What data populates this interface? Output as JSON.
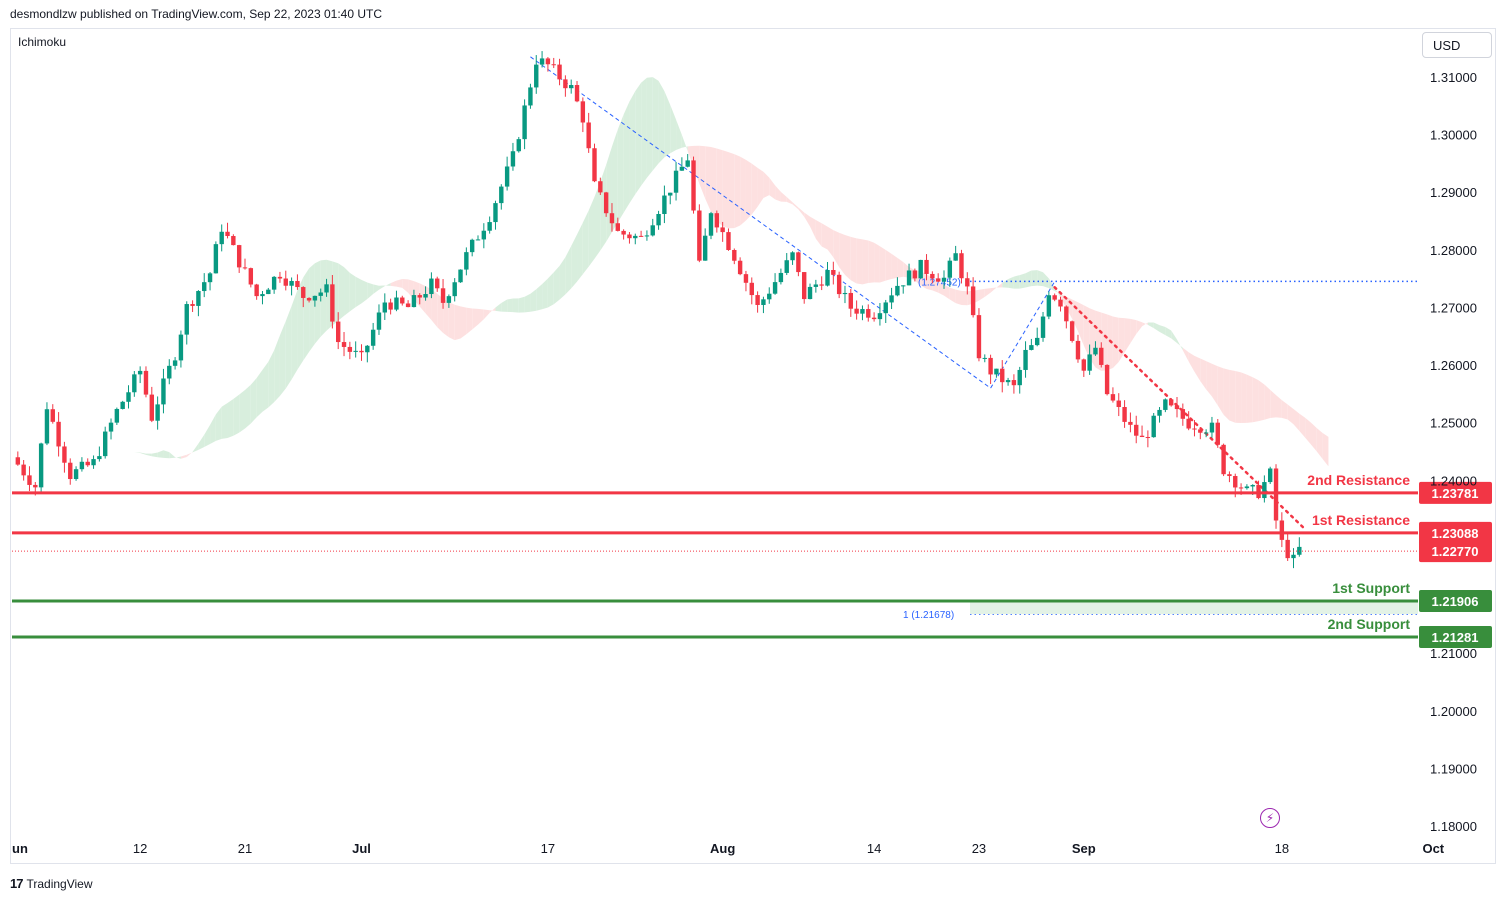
{
  "header": {
    "publisher": "desmondlzw published on TradingView.com, Sep 22, 2023 01:40 UTC"
  },
  "indicator": {
    "name": "Ichimoku"
  },
  "currency": "USD",
  "footer": {
    "brand": "TradingView",
    "logo_glyph": "17"
  },
  "colors": {
    "bull": "#089981",
    "bear": "#f23645",
    "resistance": "#f23645",
    "support": "#388e3c",
    "fib": "#2962ff",
    "cloud_bull": "#d8eedd",
    "cloud_bear": "#fde0e0"
  },
  "chart_data": {
    "type": "candlestick",
    "title": "",
    "ylim": [
      1.178,
      1.318
    ],
    "y_ticks": [
      "1.31000",
      "1.30000",
      "1.29000",
      "1.28000",
      "1.27000",
      "1.26000",
      "1.25000",
      "1.24000",
      "1.21000",
      "1.20000",
      "1.19000",
      "1.18000"
    ],
    "x_ticks": [
      {
        "label": "un",
        "day": 0
      },
      {
        "label": "12",
        "day": 11
      },
      {
        "label": "21",
        "day": 20
      },
      {
        "label": "Jul",
        "day": 30
      },
      {
        "label": "17",
        "day": 46
      },
      {
        "label": "Aug",
        "day": 61
      },
      {
        "label": "14",
        "day": 74
      },
      {
        "label": "23",
        "day": 83
      },
      {
        "label": "Sep",
        "day": 92
      },
      {
        "label": "18",
        "day": 109
      },
      {
        "label": "Oct",
        "day": 122
      }
    ],
    "close_path": [
      [
        0,
        1.244
      ],
      [
        2,
        1.239
      ],
      [
        3,
        1.253
      ],
      [
        5,
        1.241
      ],
      [
        7,
        1.243
      ],
      [
        9,
        1.252
      ],
      [
        11,
        1.259
      ],
      [
        12,
        1.251
      ],
      [
        14,
        1.262
      ],
      [
        15,
        1.27
      ],
      [
        17,
        1.276
      ],
      [
        18,
        1.284
      ],
      [
        20,
        1.276
      ],
      [
        21,
        1.272
      ],
      [
        23,
        1.276
      ],
      [
        25,
        1.272
      ],
      [
        27,
        1.273
      ],
      [
        28,
        1.264
      ],
      [
        30,
        1.261
      ],
      [
        32,
        1.271
      ],
      [
        34,
        1.27
      ],
      [
        36,
        1.274
      ],
      [
        37,
        1.271
      ],
      [
        39,
        1.279
      ],
      [
        41,
        1.286
      ],
      [
        43,
        1.296
      ],
      [
        45,
        1.313
      ],
      [
        46,
        1.312
      ],
      [
        48,
        1.308
      ],
      [
        49,
        1.303
      ],
      [
        50,
        1.291
      ],
      [
        52,
        1.283
      ],
      [
        54,
        1.282
      ],
      [
        56,
        1.289
      ],
      [
        58,
        1.296
      ],
      [
        59,
        1.277
      ],
      [
        60,
        1.287
      ],
      [
        62,
        1.279
      ],
      [
        64,
        1.27
      ],
      [
        66,
        1.276
      ],
      [
        67,
        1.279
      ],
      [
        68,
        1.272
      ],
      [
        70,
        1.276
      ],
      [
        72,
        1.27
      ],
      [
        74,
        1.269
      ],
      [
        76,
        1.274
      ],
      [
        78,
        1.277
      ],
      [
        80,
        1.275
      ],
      [
        81,
        1.279
      ],
      [
        82,
        1.273
      ],
      [
        83,
        1.262
      ],
      [
        84,
        1.259
      ],
      [
        86,
        1.256
      ],
      [
        87,
        1.262
      ],
      [
        88,
        1.264
      ],
      [
        89,
        1.273
      ],
      [
        90,
        1.271
      ],
      [
        91,
        1.265
      ],
      [
        92,
        1.259
      ],
      [
        93,
        1.263
      ],
      [
        94,
        1.255
      ],
      [
        96,
        1.249
      ],
      [
        97,
        1.247
      ],
      [
        99,
        1.253
      ],
      [
        101,
        1.25
      ],
      [
        103,
        1.249
      ],
      [
        104,
        1.242
      ],
      [
        106,
        1.238
      ],
      [
        107,
        1.238
      ],
      [
        108,
        1.241
      ],
      [
        108.5,
        1.233
      ],
      [
        109,
        1.229
      ],
      [
        110,
        1.226
      ],
      [
        110.5,
        1.228
      ]
    ],
    "cloud": {
      "note": "Ichimoku cloud"
    },
    "levels": [
      {
        "name": "2nd Resistance",
        "value": "1.23781",
        "kind": "resistance"
      },
      {
        "name": "1st Resistance",
        "value": "1.23088",
        "kind": "resistance"
      },
      {
        "name": "",
        "value": "1.22770",
        "kind": "current"
      },
      {
        "name": "1st Support",
        "value": "1.21906",
        "kind": "support"
      },
      {
        "name": "2nd Support",
        "value": "1.21281",
        "kind": "support"
      }
    ],
    "fib_labels": [
      {
        "text": "(1.27452)",
        "value": 1.27452
      },
      {
        "text": "1 (1.21678)",
        "value": 1.21678
      }
    ]
  }
}
